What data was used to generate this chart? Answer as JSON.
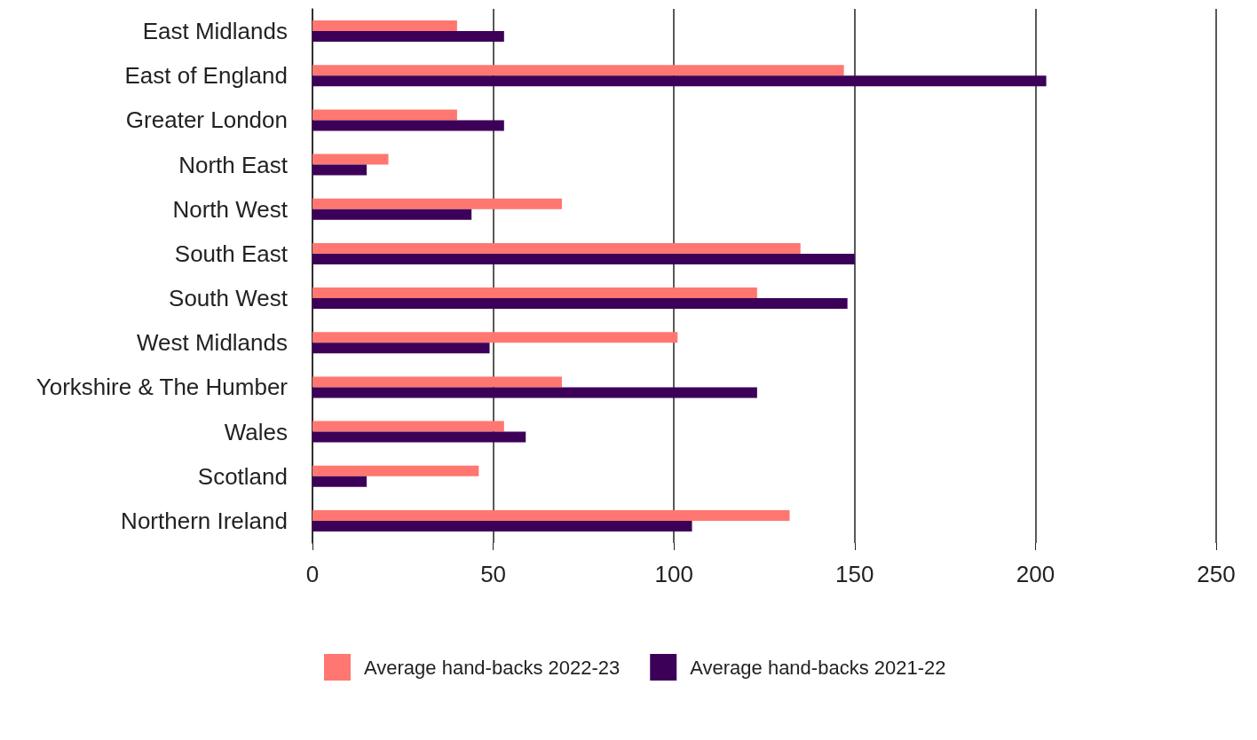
{
  "chart_data": {
    "type": "bar",
    "orientation": "horizontal",
    "categories": [
      "East Midlands",
      "East of England",
      "Greater London",
      "North East",
      "North West",
      "South East",
      "South West",
      "West Midlands",
      "Yorkshire & The Humber",
      "Wales",
      "Scotland",
      "Northern Ireland"
    ],
    "series": [
      {
        "name": "Average hand-backs 2022-23",
        "color": "#ff7770",
        "values": [
          40,
          147,
          40,
          21,
          69,
          135,
          123,
          101,
          69,
          53,
          46,
          132
        ]
      },
      {
        "name": "Average hand-backs 2021-22",
        "color": "#3d0058",
        "values": [
          53,
          203,
          53,
          15,
          44,
          150,
          148,
          49,
          123,
          59,
          15,
          105
        ]
      }
    ],
    "xlim": [
      0,
      250
    ],
    "xticks": [
      0,
      50,
      100,
      150,
      200,
      250
    ],
    "grid": "x",
    "legend": "bottom left"
  }
}
